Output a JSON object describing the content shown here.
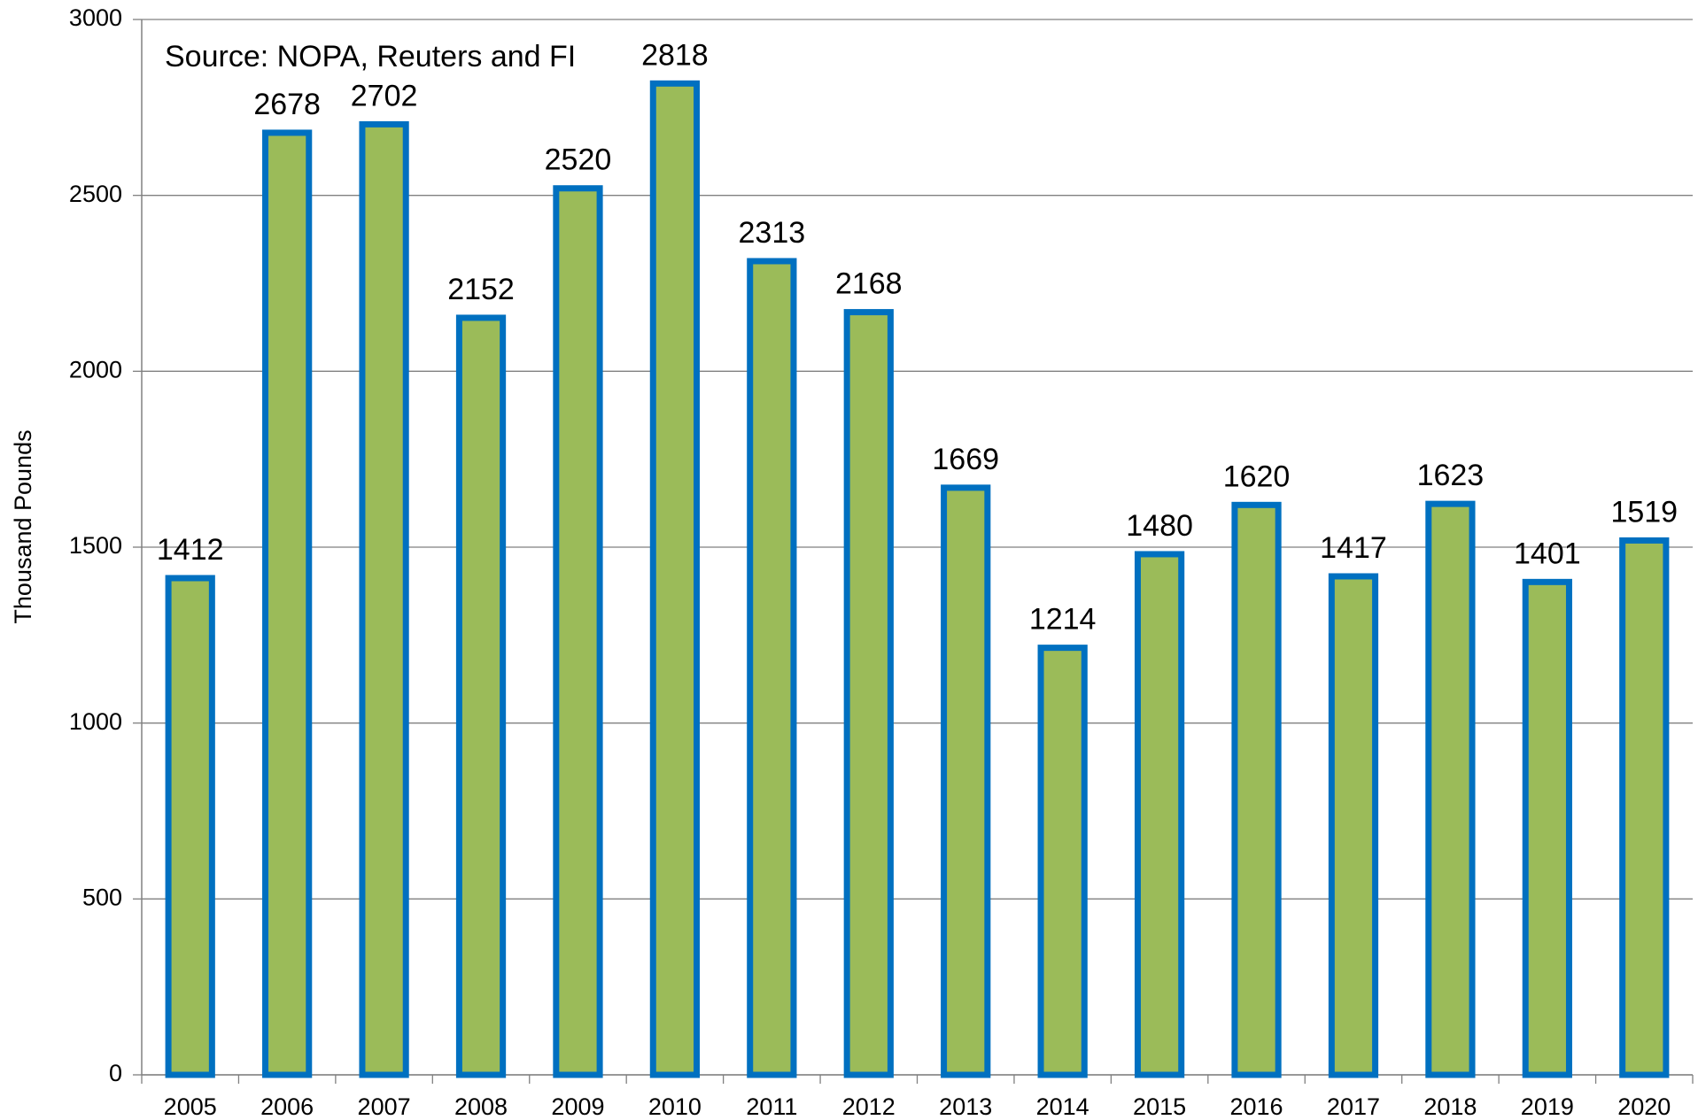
{
  "chart_data": {
    "type": "bar",
    "annotation": "Source: NOPA, Reuters and FI",
    "y_label": "Thousand Pounds",
    "categories": [
      "2005",
      "2006",
      "2007",
      "2008",
      "2009",
      "2010",
      "2011",
      "2012",
      "2013",
      "2014",
      "2015",
      "2016",
      "2017",
      "2018",
      "2019",
      "2020"
    ],
    "values": [
      1412,
      2678,
      2702,
      2152,
      2520,
      2818,
      2313,
      2168,
      1669,
      1214,
      1480,
      1620,
      1417,
      1623,
      1401,
      1519
    ],
    "color": "#9bbb59",
    "edge_color": "#0070c0",
    "ylim": [
      0,
      3000
    ],
    "yticks": [
      0,
      500,
      1000,
      1500,
      2000,
      2500,
      3000
    ],
    "grid": true
  }
}
